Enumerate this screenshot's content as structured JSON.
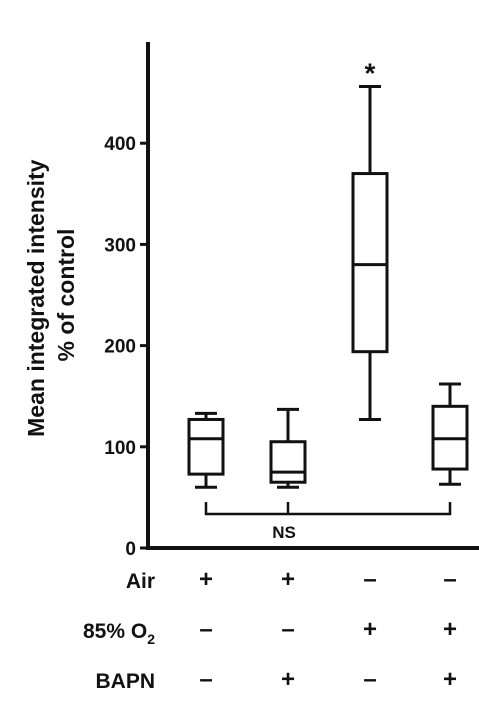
{
  "chart_data": {
    "type": "boxplot",
    "ylabel_line1": "Mean integrated intensity",
    "ylabel_line2": "% of control",
    "ylim": [
      0,
      500
    ],
    "yticks": [
      0,
      100,
      200,
      300,
      400
    ],
    "ytick_labels": [
      "0",
      "100",
      "200",
      "300",
      "400"
    ],
    "grid": false,
    "groups": [
      {
        "min": 60,
        "q1": 73,
        "median": 108,
        "q3": 127,
        "max": 133
      },
      {
        "min": 60,
        "q1": 65,
        "median": 75,
        "q3": 105,
        "max": 137
      },
      {
        "min": 127,
        "q1": 194,
        "median": 280,
        "q3": 370,
        "max": 456
      },
      {
        "min": 63,
        "q1": 78,
        "median": 108,
        "q3": 140,
        "max": 162
      }
    ],
    "annotations": {
      "significance": "*",
      "significance_group": 2,
      "bracket_label": "NS",
      "bracket_groups": [
        0,
        1,
        3
      ]
    },
    "conditions": [
      {
        "label": "Air",
        "signs": [
          "+",
          "+",
          "–",
          "–"
        ]
      },
      {
        "label": "85% O",
        "subscript": "2",
        "signs": [
          "–",
          "–",
          "+",
          "+"
        ]
      },
      {
        "label": "BAPN",
        "signs": [
          "–",
          "+",
          "–",
          "+"
        ]
      }
    ]
  }
}
